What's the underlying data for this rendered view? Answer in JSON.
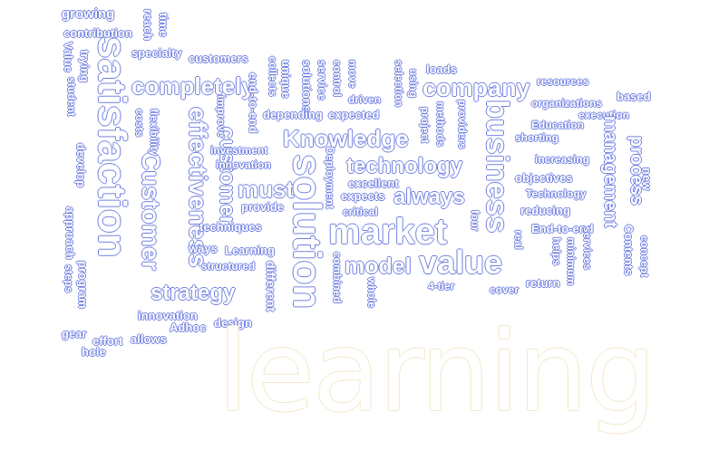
{
  "palette": {
    "fill": "#ffffff",
    "outline": "#6f7fe0",
    "outline_warm": "#f4e7c8"
  },
  "words": [
    "growing",
    "reach",
    "time",
    "contribution",
    "student",
    "Value",
    "trying",
    "specialty",
    "customers",
    "satisfaction",
    "completely",
    "end-to-end",
    "collects",
    "unique",
    "solutions",
    "service",
    "control",
    "move",
    "selection",
    "using",
    "loads",
    "company",
    "resources",
    "organizations",
    "based",
    "execution",
    "Education",
    "shorting",
    "Knowledge",
    "technology",
    "business",
    "management",
    "process",
    "new",
    "increasing",
    "objectives",
    "Technology",
    "reducing",
    "End-to-end",
    "services",
    "Contents",
    "concept",
    "Customer",
    "effectiveness",
    "customer",
    "improve",
    "investment",
    "innovation",
    "must",
    "provide",
    "techniques",
    "ways",
    "Learning",
    "structured",
    "strategy",
    "innovation",
    "Adhoc",
    "design",
    "effort",
    "allows",
    "gear",
    "hole",
    "steps",
    "approach",
    "program",
    "develop",
    "costs",
    "flexibility",
    "solution",
    "market",
    "model",
    "value",
    "always",
    "expects",
    "excellent",
    "critical",
    "Deployment",
    "combined",
    "whole",
    "different",
    "4-tier",
    "four",
    "cover",
    "return",
    "helps",
    "minimum",
    "project",
    "methods",
    "providers",
    "real",
    "expected",
    "depending",
    "driven",
    "learning"
  ]
}
